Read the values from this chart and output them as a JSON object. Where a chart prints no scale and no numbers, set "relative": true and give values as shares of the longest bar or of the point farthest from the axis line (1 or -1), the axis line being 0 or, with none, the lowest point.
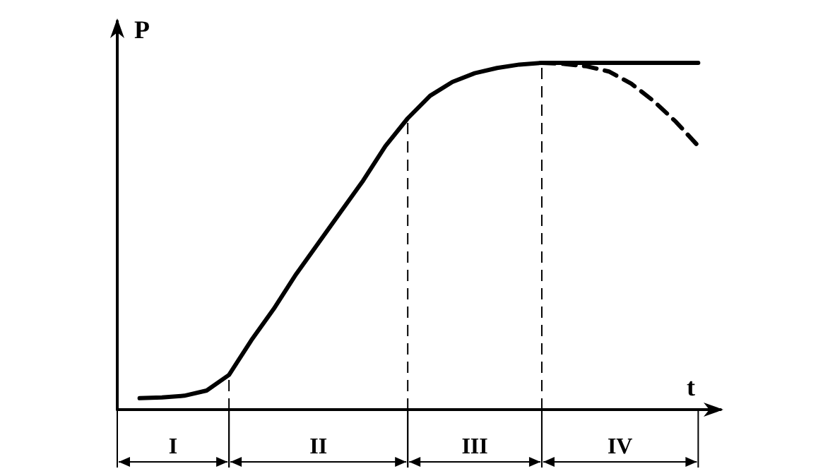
{
  "chart_data": {
    "type": "line",
    "relative": true,
    "xlabel": "t",
    "ylabel": "P",
    "marker": "none",
    "categories": [
      null,
      null,
      null,
      null,
      null,
      null,
      null,
      null,
      null,
      null,
      null,
      null,
      null,
      null,
      null,
      null,
      null,
      null,
      null,
      null,
      null,
      null,
      null,
      null,
      null,
      null,
      null,
      null
    ],
    "series": [
      {
        "color": "#000000",
        "line_style": "solid",
        "values": [
          null,
          0.033,
          0.035,
          0.04,
          0.055,
          0.1,
          0.2,
          0.29,
          0.39,
          0.48,
          0.57,
          0.66,
          0.76,
          0.84,
          0.905,
          0.945,
          0.97,
          0.985,
          0.995,
          1,
          1,
          1,
          1,
          1,
          1,
          1,
          1,
          null
        ]
      },
      {
        "color": "#000000",
        "line_style": "dashed",
        "values": [
          null,
          null,
          null,
          null,
          null,
          null,
          null,
          null,
          null,
          null,
          null,
          null,
          null,
          null,
          null,
          null,
          null,
          null,
          null,
          1,
          0.997,
          0.99,
          0.975,
          0.94,
          0.89,
          0.83,
          0.76,
          null
        ]
      }
    ],
    "annotations": [
      "I",
      "II",
      "III",
      "IV"
    ]
  }
}
